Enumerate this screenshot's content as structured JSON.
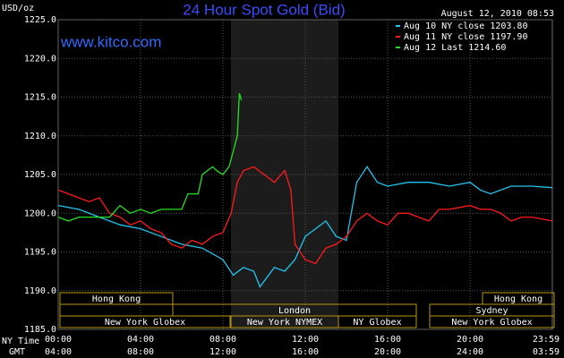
{
  "chart_data": {
    "type": "line",
    "title": "24 Hour Spot Gold (Bid)",
    "timestamp": "August 12, 2010 08:53",
    "watermark": "www.kitco.com",
    "y_label": "USD/oz",
    "x_label": "NY Time",
    "x2_label": "GMT",
    "xlim": [
      0,
      24
    ],
    "xticks": [
      {
        "value": 0,
        "label": "00:00"
      },
      {
        "value": 4,
        "label": "04:00"
      },
      {
        "value": 8,
        "label": "08:00"
      },
      {
        "value": 12,
        "label": "12:00"
      },
      {
        "value": 16,
        "label": "16:00"
      },
      {
        "value": 20,
        "label": "20:00"
      },
      {
        "value": 23.983,
        "label": "23:59"
      }
    ],
    "x2_tick_labels": [
      "04:00",
      "08:00",
      "12:00",
      "16:00",
      "20:00",
      "24:00",
      "03:59"
    ],
    "ylim": [
      1185,
      1225
    ],
    "yticks": [
      {
        "value": 1185,
        "label": "1185.0"
      },
      {
        "value": 1190,
        "label": "1190.0"
      },
      {
        "value": 1195,
        "label": "1195.0"
      },
      {
        "value": 1200,
        "label": "1200.0"
      },
      {
        "value": 1205,
        "label": "1205.0"
      },
      {
        "value": 1210,
        "label": "1210.0"
      },
      {
        "value": 1215,
        "label": "1215.0"
      },
      {
        "value": 1220,
        "label": "1220.0"
      },
      {
        "value": 1225,
        "label": "1225.0"
      }
    ],
    "grid": true,
    "sessions": [
      "Hong Kong",
      "Hong Kong",
      "London",
      "Sydney",
      "New York Globex",
      "New York NYMEX",
      "NY Globex",
      "New York Globex"
    ],
    "series": [
      {
        "name": "Aug 10 NY close 1203.80",
        "color": "#22c4f0",
        "x": [
          0,
          1,
          2,
          3,
          4,
          5,
          6,
          7,
          8,
          8.5,
          9,
          9.5,
          9.8,
          10.5,
          11,
          11.5,
          12,
          12.5,
          13,
          13.5,
          14,
          14.5,
          15,
          15.5,
          16,
          17,
          18,
          19,
          20,
          20.5,
          21,
          22,
          23,
          24
        ],
        "values": [
          1201,
          1200.5,
          1199.5,
          1198.5,
          1198,
          1197,
          1196,
          1195.5,
          1194,
          1192,
          1193,
          1192.5,
          1190.5,
          1193,
          1192.5,
          1194,
          1197,
          1198,
          1199,
          1197,
          1196.5,
          1204,
          1206,
          1204,
          1203.5,
          1204,
          1204,
          1203.5,
          1204,
          1203,
          1202.5,
          1203.5,
          1203.5,
          1203.3
        ]
      },
      {
        "name": "Aug 11 NY close 1197.90",
        "color": "#ff1a1a",
        "x": [
          0,
          0.5,
          1,
          1.5,
          2,
          2.5,
          3,
          3.5,
          4,
          4.5,
          5,
          5.5,
          6,
          6.5,
          7,
          7.5,
          8,
          8.4,
          8.7,
          9,
          9.5,
          10,
          10.5,
          11,
          11.3,
          11.5,
          12,
          12.5,
          13,
          13.5,
          14,
          14.5,
          15,
          15.5,
          16,
          16.5,
          17,
          17.5,
          18,
          18.5,
          19,
          20,
          20.5,
          21,
          21.5,
          22,
          22.5,
          23,
          24
        ],
        "values": [
          1203,
          1202.5,
          1202,
          1201.5,
          1202,
          1200,
          1199.5,
          1198.5,
          1199,
          1198,
          1197.5,
          1196,
          1195.5,
          1196.5,
          1196,
          1197,
          1197.5,
          1200,
          1204,
          1205.5,
          1206,
          1205,
          1204,
          1205.5,
          1203,
          1196,
          1194,
          1193.5,
          1195.5,
          1196,
          1197,
          1199,
          1200,
          1199,
          1198.5,
          1200,
          1200,
          1199.5,
          1199,
          1200.5,
          1200.5,
          1201,
          1200.5,
          1200.5,
          1200,
          1199,
          1199.5,
          1199.5,
          1199
        ]
      },
      {
        "name": "Aug 12 Last 1214.60",
        "color": "#22e022",
        "x": [
          0,
          0.5,
          1,
          1.5,
          2,
          2.5,
          3,
          3.5,
          4,
          4.5,
          5,
          5.5,
          6,
          6.3,
          6.8,
          7,
          7.5,
          7.7,
          8,
          8.3,
          8.5,
          8.7,
          8.8,
          8.9
        ],
        "values": [
          1199.5,
          1199,
          1199.5,
          1199.5,
          1199.5,
          1199.5,
          1201,
          1200,
          1200.5,
          1200,
          1200.5,
          1200.5,
          1200.5,
          1202.5,
          1202.5,
          1205,
          1206,
          1205.5,
          1205,
          1206,
          1208,
          1210,
          1215.5,
          1214.6
        ]
      }
    ]
  }
}
